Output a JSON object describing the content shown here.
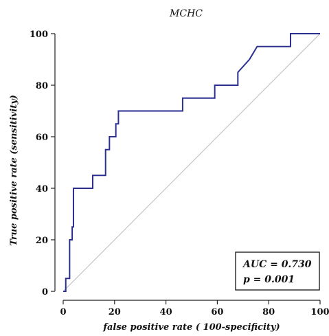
{
  "chart_data": {
    "type": "line",
    "title": "MCHC",
    "xlabel": "false positive rate ( 100-specificity)",
    "ylabel": "True positive rate (sensitivity)",
    "xlim": [
      0,
      100
    ],
    "ylim": [
      0,
      100
    ],
    "xticks": [
      "0",
      "20",
      "40",
      "60",
      "80",
      "100"
    ],
    "yticks": [
      "0",
      "20",
      "40",
      "60",
      "80",
      "100"
    ],
    "grid": false,
    "series": [
      {
        "color": "#2b2f8f",
        "x": [
          0,
          1,
          1,
          2.5,
          2.5,
          3.5,
          3.5,
          4,
          4,
          11.5,
          11.5,
          16.5,
          16.5,
          18,
          18,
          20.5,
          20.5,
          21.5,
          21.5,
          46.5,
          46.5,
          59,
          59,
          68,
          68,
          72.5,
          72.5,
          75.5,
          75.5,
          88.5,
          88.5,
          100
        ],
        "y": [
          0,
          0,
          5,
          5,
          20,
          20,
          25,
          25,
          40,
          40,
          45,
          45,
          55,
          55,
          60,
          60,
          65,
          65,
          70,
          70,
          75,
          75,
          80,
          80,
          85,
          90,
          90,
          95,
          95,
          95,
          100,
          100
        ]
      },
      {
        "color": "#bbbbbb",
        "x": [
          0,
          100
        ],
        "y": [
          0,
          100
        ]
      }
    ],
    "annotations": {
      "auc": "AUC = 0.730",
      "p": "p = 0.001"
    }
  }
}
